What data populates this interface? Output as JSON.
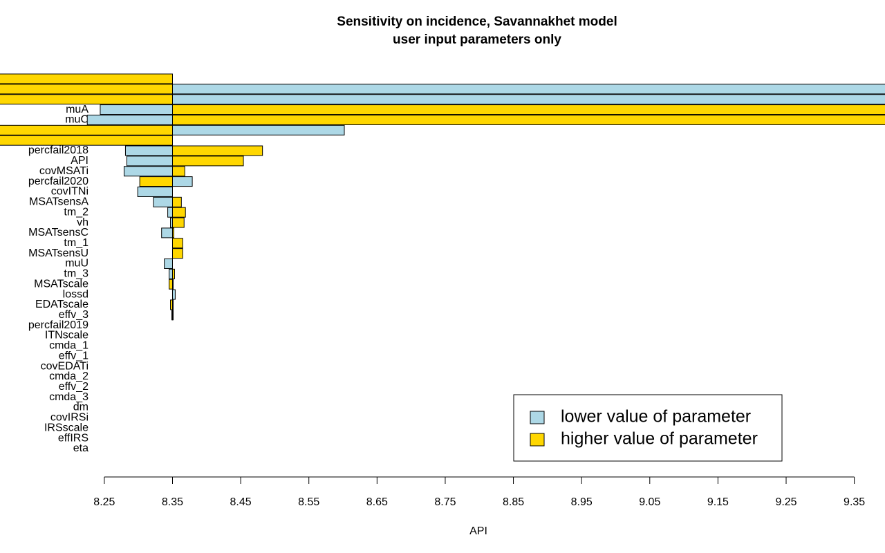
{
  "chart_data": {
    "type": "tornado",
    "title": "Sensitivity on incidence, Savannakhet model",
    "subtitle": "user input parameters only",
    "x_label": "API",
    "base": 8.35,
    "categories": [
      null,
      null,
      null,
      "muA",
      "muC",
      null,
      null,
      "percfail2018",
      "API",
      "covMSATi",
      "percfail2020",
      "covITNi",
      "MSATsensA",
      "tm_2",
      "vh",
      "MSATsensC",
      "tm_1",
      "MSATsensU",
      "muU",
      "tm_3",
      "MSATscale",
      "lossd",
      "EDATscale",
      "effv_3",
      "percfail2019",
      "ITNscale",
      "cmda_1",
      "effv_1",
      "covEDATi",
      "cmda_2",
      "effv_2",
      "cmda_3",
      "dm",
      "covIRSi",
      "IRSscale",
      "effIRS",
      "eta"
    ],
    "series": [
      {
        "name": "lower value of parameter",
        "color": "#add8e6",
        "values": [
          8.35,
          9.45,
          9.45,
          8.244,
          8.225,
          8.602,
          8.35,
          8.281,
          8.283,
          8.279,
          8.379,
          8.299,
          8.322,
          8.343,
          8.347,
          8.334,
          8.35,
          8.35,
          8.338,
          8.345,
          8.351,
          8.354,
          8.351,
          8.349,
          8.35,
          8.35,
          8.35,
          8.35,
          8.35,
          8.35,
          8.35,
          8.35,
          8.35,
          8.35,
          8.35,
          8.35,
          8.35
        ]
      },
      {
        "name": "higher value of parameter",
        "color": "#ffd700",
        "values": [
          8.05,
          8.05,
          8.05,
          9.45,
          9.45,
          8.05,
          8.05,
          8.482,
          8.454,
          8.368,
          8.302,
          8.35,
          8.363,
          8.369,
          8.367,
          8.352,
          8.365,
          8.365,
          8.35,
          8.353,
          8.345,
          8.35,
          8.347,
          8.351,
          8.35,
          8.35,
          8.35,
          8.35,
          8.35,
          8.35,
          8.35,
          8.35,
          8.35,
          8.35,
          8.35,
          8.35,
          8.35
        ]
      }
    ],
    "xlim": [
      8.097,
      9.395
    ],
    "xticks": [
      8.25,
      8.35,
      8.45,
      8.55,
      8.65,
      8.75,
      8.85,
      8.95,
      9.05,
      9.15,
      9.25,
      9.35
    ],
    "legend": "bottom-right"
  }
}
